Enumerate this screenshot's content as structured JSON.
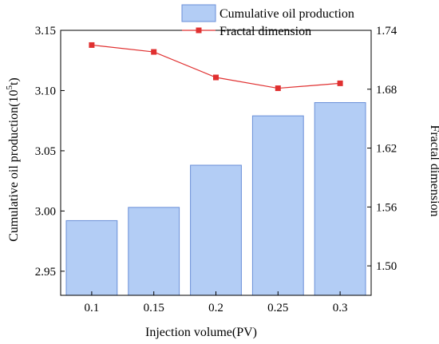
{
  "chart_data": {
    "type": "bar",
    "categories": [
      "0.1",
      "0.15",
      "0.2",
      "0.25",
      "0.3"
    ],
    "series": [
      {
        "name": "Cumulative oil production",
        "type": "bar",
        "axis": "left",
        "values": [
          2.992,
          3.003,
          3.038,
          3.079,
          3.09
        ],
        "color": "#b3cdf5",
        "edge_color": "#6a8fd8"
      },
      {
        "name": "Fractal dimension",
        "type": "line",
        "axis": "right",
        "values": [
          1.725,
          1.718,
          1.692,
          1.681,
          1.686
        ],
        "color": "#e03030"
      }
    ],
    "xlabel": "Injection volume(PV)",
    "ylabel_left": "Cumulative oil production(10",
    "ylabel_left_sup": "5",
    "ylabel_left_end": "t)",
    "ylabel_right": "Fractal dimension",
    "ylim_left": [
      2.93,
      3.15
    ],
    "ylim_right": [
      1.47,
      1.74
    ],
    "yticks_left": [
      "2.95",
      "3.00",
      "3.05",
      "3.10",
      "3.15"
    ],
    "yticks_right": [
      "1.50",
      "1.56",
      "1.62",
      "1.68",
      "1.74"
    ],
    "legend_position": "top-right"
  }
}
